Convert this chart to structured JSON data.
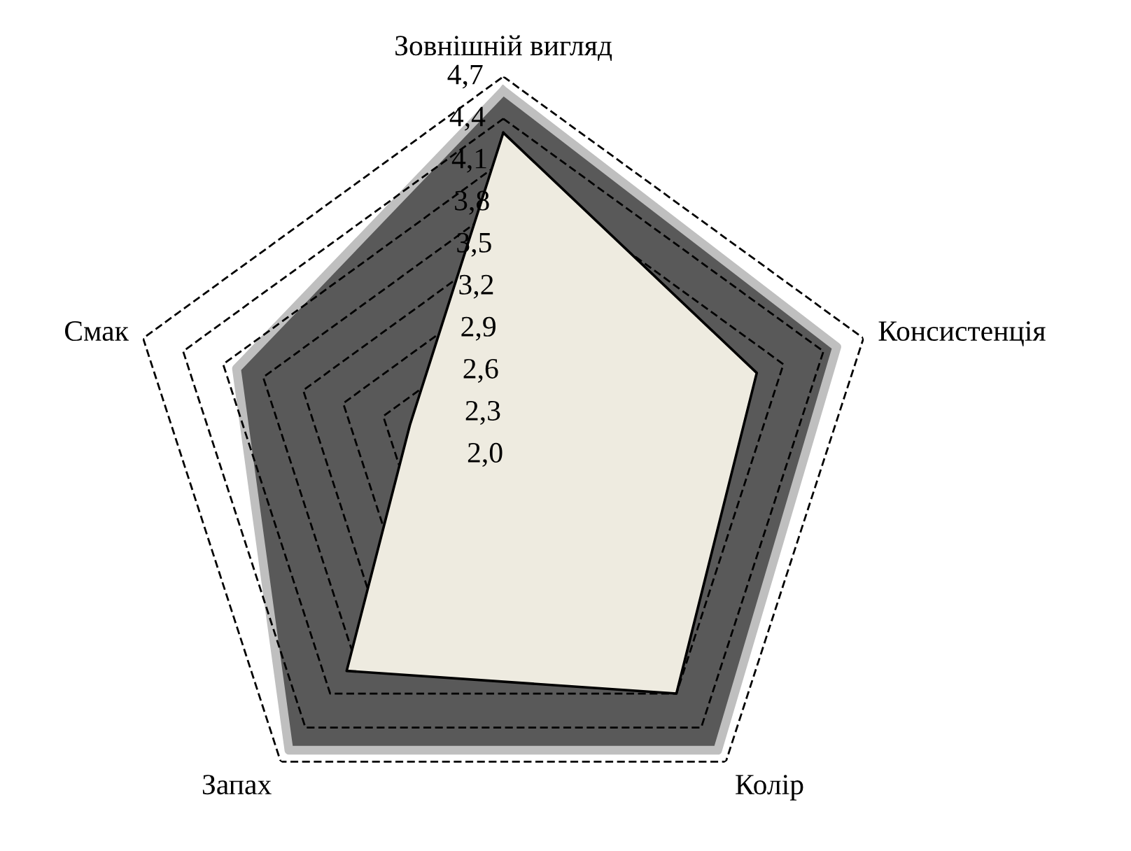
{
  "chart_data": {
    "type": "radar",
    "categories": [
      "Зовнішній вигляд",
      "Консистенція",
      "Колір",
      "Запах",
      "Смак"
    ],
    "series": [
      {
        "color": "#595959",
        "values": [
          4.6,
          4.5,
          4.6,
          4.6,
          4.0
        ]
      },
      {
        "color": "#eeebe0",
        "values": [
          4.3,
          3.9,
          4.1,
          3.9,
          2.7
        ]
      }
    ],
    "ylim": [
      2.0,
      4.7
    ],
    "yticks": [
      {
        "value": 2.0,
        "label": "2,0"
      },
      {
        "value": 2.3,
        "label": "2,3"
      },
      {
        "value": 2.6,
        "label": "2,6"
      },
      {
        "value": 2.9,
        "label": "2,9"
      },
      {
        "value": 3.2,
        "label": "3,2"
      },
      {
        "value": 3.5,
        "label": "3,5"
      },
      {
        "value": 3.8,
        "label": "3,8"
      },
      {
        "value": 4.1,
        "label": "4,1"
      },
      {
        "value": 4.4,
        "label": "4,4"
      },
      {
        "value": 4.7,
        "label": "4,7"
      }
    ],
    "grid": true,
    "line_style": "solid"
  }
}
